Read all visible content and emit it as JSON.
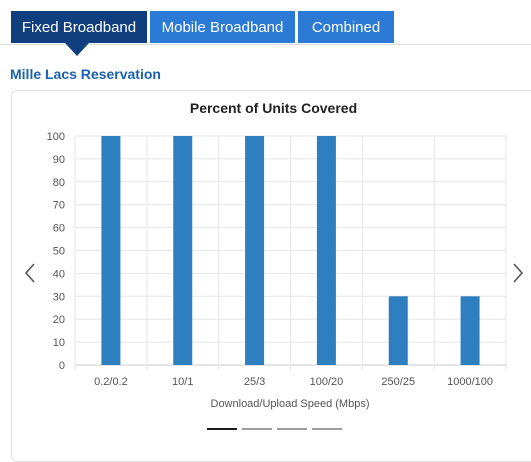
{
  "tabs": [
    {
      "label": "Fixed Broadband",
      "active": true
    },
    {
      "label": "Mobile Broadband",
      "active": false
    },
    {
      "label": "Combined",
      "active": false
    }
  ],
  "location_title": "Mille Lacs Reservation",
  "carousel": {
    "slide_count": 4,
    "active_index": 0
  },
  "colors": {
    "active_tab": "#0f3f7f",
    "tab": "#2b7bd6",
    "bar": "#2e7fbf",
    "title": "#1a62b1"
  },
  "chart_data": {
    "type": "bar",
    "title": "Percent of Units Covered",
    "xlabel": "Download/Upload Speed (Mbps)",
    "ylabel": "",
    "categories": [
      "0.2/0.2",
      "10/1",
      "25/3",
      "100/20",
      "250/25",
      "1000/100"
    ],
    "values": [
      100,
      100,
      100,
      100,
      30,
      30
    ],
    "ylim": [
      0,
      100
    ],
    "yticks": [
      "0",
      "10",
      "20",
      "30",
      "40",
      "50",
      "60",
      "70",
      "80",
      "90",
      "100"
    ],
    "grid": true,
    "legend": "none"
  }
}
